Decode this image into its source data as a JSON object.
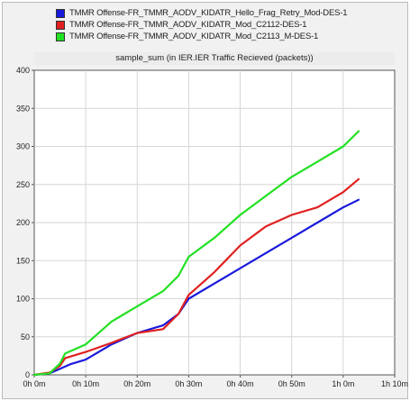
{
  "legend": [
    {
      "label": "TMMR Offense-FR_TMMR_AODV_KIDATR_Hello_Frag_Retry_Mod-DES-1",
      "color": "#1a1adc"
    },
    {
      "label": "TMMR Offense-FR_TMMR_AODV_KIDATR_Mod_C2112-DES-1",
      "color": "#e02020"
    },
    {
      "label": "TMMR Offense-FR_TMMR_AODV_KIDATR_Mod_C2113_M-DES-1",
      "color": "#22e022"
    }
  ],
  "chart_data": {
    "type": "line",
    "title": "sample_sum (in IER.IER Traffic Recieved (packets))",
    "xlabel": "",
    "ylabel": "",
    "xlim": [
      0,
      70
    ],
    "ylim": [
      0,
      400
    ],
    "x_unit": "minutes",
    "x_ticks": [
      {
        "value": 0,
        "label": "0h 0m"
      },
      {
        "value": 10,
        "label": "0h 10m"
      },
      {
        "value": 20,
        "label": "0h 20m"
      },
      {
        "value": 30,
        "label": "0h 30m"
      },
      {
        "value": 40,
        "label": "0h 40m"
      },
      {
        "value": 50,
        "label": "0h 50m"
      },
      {
        "value": 60,
        "label": "1h 0m"
      },
      {
        "value": 70,
        "label": "1h 10m"
      }
    ],
    "y_ticks": [
      0,
      50,
      100,
      150,
      200,
      250,
      300,
      350,
      400
    ],
    "grid": true,
    "legend_position": "top",
    "series": [
      {
        "name": "TMMR Offense-FR_TMMR_AODV_KIDATR_Hello_Frag_Retry_Mod-DES-1",
        "color": "#1a1adc",
        "x": [
          0,
          3,
          5,
          7,
          10,
          15,
          20,
          25,
          28,
          30,
          35,
          40,
          45,
          50,
          55,
          60,
          63
        ],
        "y": [
          0,
          2,
          8,
          14,
          20,
          40,
          55,
          65,
          80,
          100,
          120,
          140,
          160,
          180,
          200,
          220,
          230
        ]
      },
      {
        "name": "TMMR Offense-FR_TMMR_AODV_KIDATR_Mod_C2112-DES-1",
        "color": "#e02020",
        "x": [
          0,
          3,
          5,
          6,
          10,
          15,
          20,
          25,
          28,
          30,
          35,
          40,
          45,
          50,
          55,
          60,
          63
        ],
        "y": [
          0,
          3,
          12,
          22,
          30,
          42,
          55,
          60,
          80,
          105,
          135,
          170,
          195,
          210,
          220,
          240,
          257
        ]
      },
      {
        "name": "TMMR Offense-FR_TMMR_AODV_KIDATR_Mod_C2113_M-DES-1",
        "color": "#22e022",
        "x": [
          0,
          3,
          5,
          6,
          10,
          15,
          20,
          25,
          28,
          30,
          35,
          40,
          45,
          50,
          55,
          60,
          63
        ],
        "y": [
          0,
          2,
          15,
          28,
          40,
          70,
          90,
          110,
          130,
          155,
          180,
          210,
          235,
          260,
          280,
          300,
          320
        ]
      }
    ]
  }
}
